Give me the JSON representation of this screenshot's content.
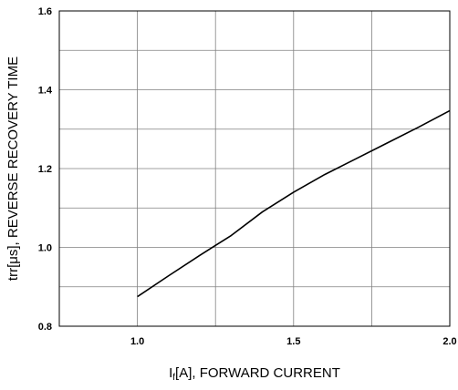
{
  "chart_data": {
    "type": "line",
    "title": "",
    "xlabel": {
      "prefix": "I",
      "subscript": "f",
      "suffix": "[A], FORWARD CURRENT"
    },
    "ylabel": "trr[μs], REVERSE RECOVERY TIME",
    "xlim": [
      0.75,
      2.0
    ],
    "ylim": [
      0.8,
      1.6
    ],
    "x_ticks": [
      1.0,
      1.5,
      2.0
    ],
    "x_tick_labels": [
      "1.0",
      "1.5",
      "2.0"
    ],
    "x_minor_gridlines": [
      1.25,
      1.75
    ],
    "y_ticks": [
      0.8,
      1.0,
      1.2,
      1.4,
      1.6
    ],
    "y_tick_labels": [
      "0.8",
      "1.0",
      "1.2",
      "1.4",
      "1.6"
    ],
    "y_minor_gridlines": [
      0.9,
      1.1,
      1.3,
      1.5
    ],
    "grid": true,
    "series": [
      {
        "x": [
          1.0,
          1.1,
          1.2,
          1.25,
          1.3,
          1.4,
          1.5,
          1.6,
          1.7,
          1.8,
          1.9,
          2.0
        ],
        "y": [
          0.875,
          0.928,
          0.98,
          1.005,
          1.03,
          1.09,
          1.14,
          1.185,
          1.225,
          1.265,
          1.305,
          1.347
        ]
      }
    ],
    "colors": {
      "line": "#000000",
      "grid": "#808080",
      "frame": "#000000"
    }
  }
}
